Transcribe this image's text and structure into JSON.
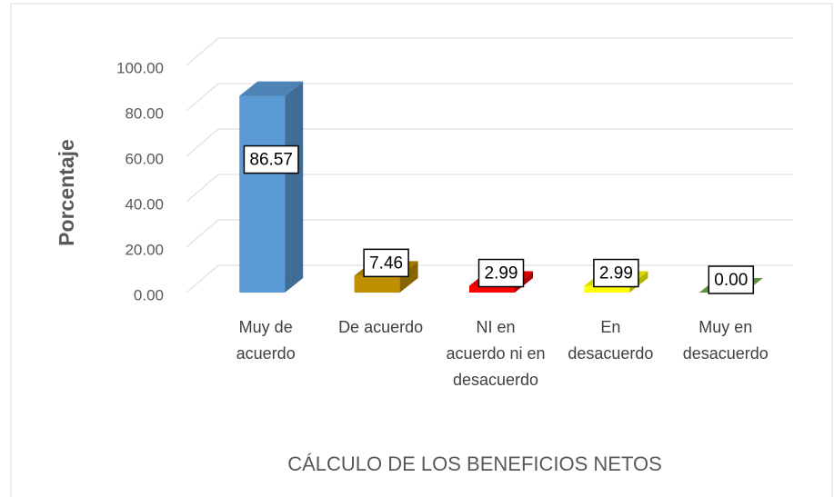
{
  "chart_data": {
    "type": "bar3d",
    "x_label": "CÁLCULO DE LOS BENEFICIOS NETOS",
    "y_label": "Porcentaje",
    "categories": [
      "Muy de acuerdo",
      "De acuerdo",
      "NI en acuerdo ni en desacuerdo",
      "En desacuerdo",
      "Muy en desacuerdo"
    ],
    "values": [
      86.57,
      7.46,
      2.99,
      2.99,
      0.0
    ],
    "value_labels": [
      "86.57",
      "7.46",
      "2.99",
      "2.99",
      "0.00"
    ],
    "colors": [
      "#5b9bd5",
      "#bf8f00",
      "#ff0000",
      "#ffff00",
      "#70ad47"
    ],
    "ylim": [
      0,
      100
    ],
    "yticks": [
      {
        "value": 0,
        "label": "0.00"
      },
      {
        "value": 20,
        "label": "20.00"
      },
      {
        "value": 40,
        "label": "40.00"
      },
      {
        "value": 60,
        "label": "60.00"
      },
      {
        "value": 80,
        "label": "80.00"
      },
      {
        "value": 100,
        "label": "100.00"
      }
    ],
    "grid": true
  }
}
